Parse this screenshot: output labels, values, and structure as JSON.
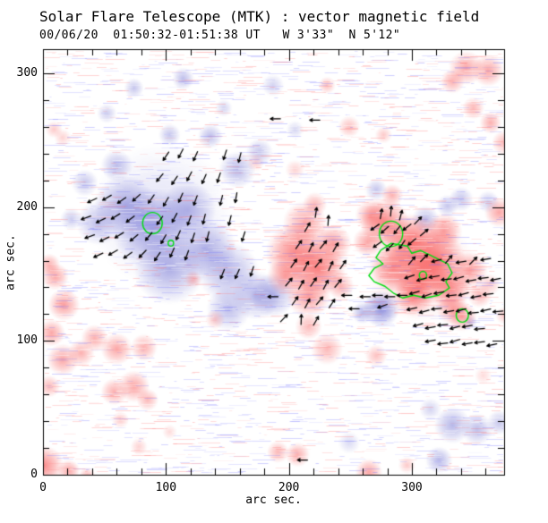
{
  "title": "Solar Flare Telescope (MTK) : vector magnetic field",
  "subtitle": "00/06/20  01:50:32-01:51:38 UT   W 3'33\"  N 5'12\"",
  "axes": {
    "xlabel": "arc sec.",
    "ylabel": "arc sec.",
    "x_ticks": [
      0,
      100,
      200,
      300
    ],
    "y_ticks": [
      0,
      100,
      200,
      300
    ],
    "minor_step": 20,
    "x_range": [
      0,
      375
    ],
    "y_range": [
      0,
      318
    ]
  },
  "colors": {
    "background": "#ffffff",
    "axis": "#000000",
    "positive": "#f85050",
    "negative": "#7070d2",
    "contour": "#00dd11",
    "vector": "#000000",
    "noise_pink": "255,110,110",
    "noise_lavender": "110,110,255"
  },
  "chart_data": {
    "type": "heatmap",
    "description": "Vector magnetogram: red = positive line-of-sight field, blue = negative field, black arrows = transverse field vectors, green contours = flare kernels. Units: arc seconds.",
    "negative_blobs": [
      [
        96,
        194,
        58,
        0.22
      ],
      [
        89,
        184,
        33,
        0.6
      ],
      [
        67,
        201,
        25,
        0.55
      ],
      [
        118,
        198,
        23,
        0.5
      ],
      [
        45,
        188,
        18,
        0.45
      ],
      [
        133,
        168,
        25,
        0.55
      ],
      [
        103,
        154,
        29,
        0.55
      ],
      [
        151,
        151,
        25,
        0.5
      ],
      [
        173,
        134,
        20,
        0.5
      ],
      [
        151,
        124,
        18,
        0.45
      ],
      [
        187,
        134,
        18,
        0.5
      ],
      [
        74,
        289,
        8,
        0.4
      ],
      [
        114,
        296,
        9,
        0.45
      ],
      [
        52,
        270,
        8,
        0.35
      ],
      [
        136,
        253,
        10,
        0.45
      ],
      [
        103,
        254,
        9,
        0.4
      ],
      [
        34,
        218,
        11,
        0.4
      ],
      [
        23,
        191,
        9,
        0.35
      ],
      [
        60,
        231,
        13,
        0.45
      ],
      [
        158,
        228,
        15,
        0.5
      ],
      [
        176,
        241,
        11,
        0.4
      ],
      [
        147,
        274,
        7,
        0.3
      ],
      [
        187,
        291,
        9,
        0.3
      ],
      [
        205,
        258,
        7,
        0.3
      ],
      [
        271,
        213,
        9,
        0.4
      ],
      [
        311,
        191,
        11,
        0.45
      ],
      [
        329,
        201,
        9,
        0.4
      ],
      [
        340,
        206,
        10,
        0.4
      ],
      [
        362,
        204,
        9,
        0.35
      ],
      [
        275,
        124,
        15,
        0.8
      ],
      [
        260,
        121,
        9,
        0.5
      ],
      [
        347,
        114,
        6,
        0.35
      ],
      [
        333,
        37,
        15,
        0.5
      ],
      [
        353,
        34,
        13,
        0.45
      ],
      [
        371,
        39,
        10,
        0.4
      ],
      [
        322,
        11,
        11,
        0.5
      ],
      [
        249,
        24,
        9,
        0.25
      ],
      [
        315,
        49,
        9,
        0.3
      ]
    ],
    "positive_blobs": [
      [
        307,
        154,
        44,
        0.3
      ],
      [
        216,
        161,
        33,
        0.25
      ],
      [
        213,
        188,
        18,
        0.5
      ],
      [
        205,
        166,
        24,
        0.6
      ],
      [
        224,
        154,
        22,
        0.65
      ],
      [
        216,
        134,
        18,
        0.55
      ],
      [
        236,
        173,
        15,
        0.5
      ],
      [
        197,
        148,
        15,
        0.5
      ],
      [
        242,
        141,
        11,
        0.45
      ],
      [
        221,
        202,
        10,
        0.4
      ],
      [
        278,
        188,
        20,
        0.7
      ],
      [
        300,
        173,
        24,
        0.75
      ],
      [
        320,
        160,
        24,
        0.75
      ],
      [
        307,
        146,
        22,
        0.7
      ],
      [
        285,
        154,
        19,
        0.65
      ],
      [
        331,
        139,
        17,
        0.65
      ],
      [
        347,
        153,
        15,
        0.55
      ],
      [
        326,
        182,
        15,
        0.55
      ],
      [
        267,
        194,
        13,
        0.5
      ],
      [
        301,
        133,
        16,
        0.55
      ],
      [
        333,
        124,
        13,
        0.5
      ],
      [
        355,
        134,
        10,
        0.4
      ],
      [
        363,
        142,
        9,
        0.3
      ],
      [
        284,
        209,
        9,
        0.45
      ],
      [
        264,
        174,
        12,
        0.5
      ],
      [
        344,
        304,
        14,
        0.5
      ],
      [
        362,
        302,
        13,
        0.5
      ],
      [
        333,
        294,
        10,
        0.45
      ],
      [
        350,
        274,
        9,
        0.4
      ],
      [
        364,
        263,
        9,
        0.45
      ],
      [
        375,
        248,
        10,
        0.4
      ],
      [
        371,
        196,
        12,
        0.5
      ],
      [
        231,
        291,
        7,
        0.35
      ],
      [
        249,
        260,
        9,
        0.35
      ],
      [
        277,
        254,
        7,
        0.3
      ],
      [
        205,
        228,
        8,
        0.25
      ],
      [
        173,
        233,
        7,
        0.25
      ],
      [
        9,
        258,
        7,
        0.3
      ],
      [
        16,
        252,
        7,
        0.25
      ],
      [
        10,
        148,
        11,
        0.5
      ],
      [
        5,
        157,
        9,
        0.45
      ],
      [
        17,
        127,
        13,
        0.55
      ],
      [
        7,
        106,
        11,
        0.5
      ],
      [
        16,
        86,
        13,
        0.5
      ],
      [
        5,
        66,
        9,
        0.4
      ],
      [
        42,
        102,
        11,
        0.45
      ],
      [
        31,
        91,
        11,
        0.45
      ],
      [
        60,
        94,
        13,
        0.5
      ],
      [
        82,
        95,
        11,
        0.45
      ],
      [
        74,
        66,
        13,
        0.5
      ],
      [
        58,
        62,
        11,
        0.45
      ],
      [
        85,
        56,
        9,
        0.4
      ],
      [
        63,
        41,
        7,
        0.3
      ],
      [
        122,
        146,
        7,
        0.4
      ],
      [
        140,
        116,
        8,
        0.3
      ],
      [
        216,
        111,
        11,
        0.4
      ],
      [
        231,
        94,
        13,
        0.4
      ],
      [
        191,
        17,
        9,
        0.4
      ],
      [
        207,
        15,
        10,
        0.45
      ],
      [
        265,
        2,
        11,
        0.5
      ],
      [
        296,
        7,
        7,
        0.3
      ],
      [
        1,
        7,
        16,
        0.65
      ],
      [
        21,
        3,
        9,
        0.5
      ],
      [
        36,
        -1,
        7,
        0.4
      ],
      [
        78,
        21,
        7,
        0.25
      ],
      [
        103,
        32,
        6,
        0.2
      ],
      [
        271,
        89,
        9,
        0.35
      ],
      [
        358,
        74,
        7,
        0.2
      ],
      [
        375,
        119,
        7,
        0.3
      ],
      [
        341,
        118,
        12,
        0.5
      ]
    ],
    "contours": {
      "circles": [
        [
          89,
          188,
          8
        ],
        [
          104,
          173,
          2.2
        ],
        [
          283,
          180,
          9.5
        ],
        [
          309,
          149,
          3
        ],
        [
          341,
          119,
          5
        ]
      ],
      "path": [
        [
          283.2,
          172.9
        ],
        [
          296.3,
          170.9
        ],
        [
          299.9,
          165.5
        ],
        [
          307.2,
          167.5
        ],
        [
          314.5,
          164.2
        ],
        [
          329.1,
          157.5
        ],
        [
          332.7,
          150.8
        ],
        [
          327.6,
          144.2
        ],
        [
          330.5,
          139.5
        ],
        [
          321.8,
          134.1
        ],
        [
          310.9,
          132.1
        ],
        [
          301.4,
          134.1
        ],
        [
          292.6,
          132.1
        ],
        [
          285.4,
          135.5
        ],
        [
          278.1,
          140.8
        ],
        [
          269.4,
          144.2
        ],
        [
          265.0,
          148.8
        ],
        [
          269.4,
          154.2
        ],
        [
          276.6,
          157.5
        ],
        [
          270.8,
          162.2
        ],
        [
          274.4,
          167.5
        ]
      ]
    },
    "vector_groups": {
      "negative_region": [
        [
          40,
          205,
          205
        ],
        [
          52,
          207,
          210
        ],
        [
          64,
          205,
          215
        ],
        [
          76,
          207,
          222
        ],
        [
          88,
          206,
          235
        ],
        [
          100,
          204,
          240
        ],
        [
          112,
          207,
          246
        ],
        [
          124,
          205,
          250
        ],
        [
          35,
          192,
          200
        ],
        [
          47,
          190,
          206
        ],
        [
          59,
          193,
          212
        ],
        [
          71,
          191,
          218
        ],
        [
          95,
          190,
          235
        ],
        [
          107,
          192,
          242
        ],
        [
          119,
          190,
          250
        ],
        [
          131,
          191,
          256
        ],
        [
          38,
          178,
          200
        ],
        [
          50,
          176,
          206
        ],
        [
          62,
          179,
          212
        ],
        [
          74,
          177,
          220
        ],
        [
          86,
          178,
          230
        ],
        [
          98,
          176,
          240
        ],
        [
          110,
          179,
          246
        ],
        [
          122,
          177,
          252
        ],
        [
          134,
          178,
          256
        ],
        [
          45,
          164,
          205
        ],
        [
          57,
          166,
          210
        ],
        [
          69,
          164,
          216
        ],
        [
          81,
          165,
          226
        ],
        [
          93,
          163,
          236
        ],
        [
          105,
          166,
          246
        ],
        [
          117,
          164,
          250
        ],
        [
          95,
          222,
          230
        ],
        [
          107,
          220,
          236
        ],
        [
          119,
          223,
          242
        ],
        [
          131,
          221,
          246
        ],
        [
          143,
          222,
          252
        ],
        [
          100,
          238,
          236
        ],
        [
          112,
          240,
          242
        ],
        [
          124,
          238,
          246
        ],
        [
          148,
          239,
          252
        ],
        [
          160,
          237,
          256
        ],
        [
          145,
          205,
          256
        ],
        [
          157,
          207,
          260
        ],
        [
          152,
          190,
          256
        ],
        [
          163,
          178,
          252
        ],
        [
          146,
          150,
          248
        ],
        [
          158,
          150,
          246
        ],
        [
          170,
          152,
          252
        ],
        [
          187,
          133,
          180
        ]
      ],
      "positive_middle": [
        [
          215,
          185,
          60
        ],
        [
          208,
          172,
          55
        ],
        [
          218,
          170,
          65
        ],
        [
          228,
          172,
          50
        ],
        [
          238,
          170,
          60
        ],
        [
          204,
          158,
          55
        ],
        [
          214,
          156,
          62
        ],
        [
          224,
          158,
          50
        ],
        [
          234,
          156,
          66
        ],
        [
          244,
          157,
          55
        ],
        [
          200,
          144,
          50
        ],
        [
          210,
          142,
          60
        ],
        [
          220,
          144,
          55
        ],
        [
          230,
          142,
          62
        ],
        [
          240,
          143,
          50
        ],
        [
          205,
          130,
          55
        ],
        [
          215,
          128,
          62
        ],
        [
          225,
          130,
          50
        ],
        [
          235,
          128,
          56
        ],
        [
          210,
          116,
          88
        ],
        [
          196,
          117,
          46
        ],
        [
          222,
          115,
          60
        ],
        [
          222,
          196,
          82
        ],
        [
          232,
          190,
          86
        ]
      ],
      "positive_right_upper": [
        [
          275,
          195,
          80
        ],
        [
          283,
          197,
          85
        ],
        [
          291,
          194,
          75
        ],
        [
          270,
          185,
          215
        ],
        [
          278,
          183,
          222
        ],
        [
          288,
          183,
          232
        ],
        [
          296,
          185,
          218
        ],
        [
          272,
          172,
          215
        ],
        [
          282,
          170,
          226
        ],
        [
          292,
          172,
          236
        ],
        [
          300,
          174,
          220
        ],
        [
          305,
          190,
          46
        ],
        [
          310,
          181,
          40
        ]
      ],
      "positive_right_main": [
        [
          300,
          160,
          50
        ],
        [
          310,
          162,
          45
        ],
        [
          320,
          160,
          195
        ],
        [
          330,
          161,
          50
        ],
        [
          340,
          159,
          190
        ],
        [
          350,
          160,
          45
        ],
        [
          360,
          161,
          190
        ],
        [
          298,
          148,
          200
        ],
        [
          308,
          146,
          196
        ],
        [
          318,
          148,
          190
        ],
        [
          328,
          146,
          186
        ],
        [
          338,
          147,
          196
        ],
        [
          348,
          145,
          190
        ],
        [
          358,
          147,
          186
        ],
        [
          368,
          146,
          192
        ],
        [
          302,
          136,
          196
        ],
        [
          312,
          134,
          200
        ],
        [
          322,
          136,
          190
        ],
        [
          332,
          134,
          186
        ],
        [
          342,
          135,
          196
        ],
        [
          352,
          133,
          190
        ],
        [
          362,
          135,
          186
        ],
        [
          300,
          124,
          192
        ],
        [
          310,
          122,
          196
        ],
        [
          320,
          124,
          186
        ],
        [
          330,
          122,
          190
        ],
        [
          340,
          123,
          196
        ],
        [
          350,
          121,
          186
        ],
        [
          360,
          123,
          192
        ],
        [
          370,
          122,
          186
        ],
        [
          305,
          112,
          196
        ],
        [
          315,
          110,
          190
        ],
        [
          325,
          112,
          186
        ],
        [
          335,
          110,
          196
        ],
        [
          345,
          111,
          190
        ],
        [
          355,
          109,
          186
        ],
        [
          315,
          100,
          190
        ],
        [
          325,
          98,
          186
        ],
        [
          335,
          100,
          196
        ],
        [
          345,
          98,
          190
        ],
        [
          355,
          99,
          186
        ],
        [
          365,
          97,
          192
        ]
      ],
      "neutral_line_dashes": [
        [
          247,
          134,
          180
        ],
        [
          253,
          124,
          180
        ],
        [
          262,
          133,
          180
        ],
        [
          272,
          134,
          180
        ],
        [
          282,
          133,
          180
        ],
        [
          292,
          134,
          180
        ],
        [
          276,
          126,
          200
        ]
      ],
      "isolated": [
        [
          189,
          266,
          180
        ],
        [
          221,
          265,
          180
        ],
        [
          211,
          11,
          180
        ]
      ]
    },
    "noise": {
      "seed": 1234567,
      "colored_streaks": 2600,
      "white_streaks": 1300
    }
  }
}
